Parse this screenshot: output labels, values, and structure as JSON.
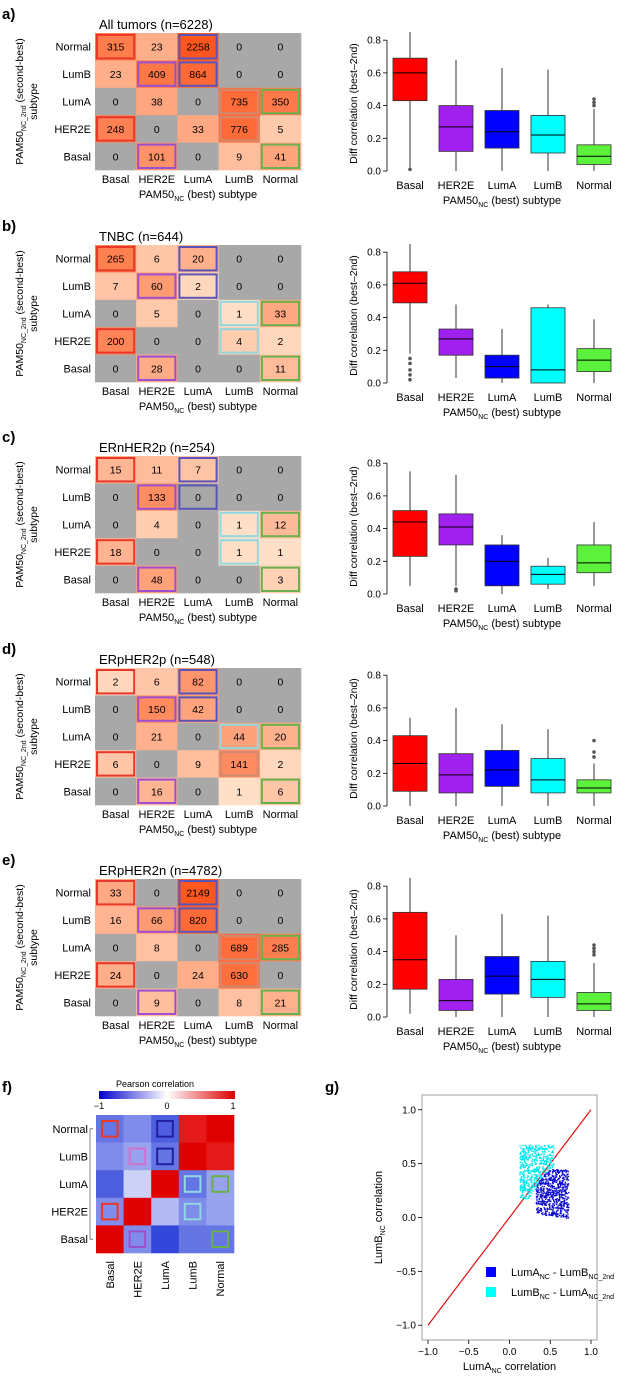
{
  "common": {
    "row_labels": [
      "Normal",
      "LumB",
      "LumA",
      "HER2E",
      "Basal"
    ],
    "col_labels": [
      "Basal",
      "HER2E",
      "LumA",
      "LumB",
      "Normal"
    ],
    "ylabel_main": "PAM50",
    "ylabel_sub": "NC_2nd",
    "ylabel_tail": " (second-best)",
    "ylabel_line2": "subtype",
    "xlabel_main": "PAM50",
    "xlabel_sub": "NC",
    "xlabel_tail": " (best) subtype",
    "box_ylabel": "Diff correlation (best–2nd)",
    "colors": {
      "Basal": "#ff0000",
      "HER2E": "#a020f0",
      "LumA": "#0000ff",
      "LumB": "#00ffff",
      "Normal": "#5cf23c"
    }
  },
  "panels": [
    {
      "letter": "a)",
      "title": "All tumors (n=6228)",
      "matrix": [
        [
          315,
          23,
          2258,
          0,
          0
        ],
        [
          23,
          409,
          864,
          0,
          0
        ],
        [
          0,
          38,
          0,
          735,
          350
        ],
        [
          248,
          0,
          33,
          776,
          5
        ],
        [
          0,
          101,
          0,
          9,
          41
        ]
      ],
      "boxes": [
        [
          0.43,
          0.6,
          0.69,
          0.85,
          0.01
        ],
        [
          0.12,
          0.27,
          0.4,
          0.68,
          0.0
        ],
        [
          0.14,
          0.24,
          0.37,
          0.63,
          0.0
        ],
        [
          0.11,
          0.22,
          0.34,
          0.62,
          0.0
        ],
        [
          0.04,
          0.09,
          0.16,
          0.38,
          0.0
        ]
      ],
      "outliers": [
        [
          0.01
        ],
        [],
        [],
        [],
        [
          0.4,
          0.42,
          0.44
        ]
      ]
    },
    {
      "letter": "b)",
      "title": "TNBC (n=644)",
      "matrix": [
        [
          265,
          6,
          20,
          0,
          0
        ],
        [
          7,
          60,
          2,
          0,
          0
        ],
        [
          0,
          5,
          0,
          1,
          33
        ],
        [
          200,
          0,
          0,
          4,
          2
        ],
        [
          0,
          28,
          0,
          0,
          11
        ]
      ],
      "boxes": [
        [
          0.49,
          0.61,
          0.68,
          0.85,
          0.18
        ],
        [
          0.17,
          0.27,
          0.33,
          0.48,
          0.03
        ],
        [
          0.03,
          0.1,
          0.17,
          0.33,
          0.0
        ],
        [
          0.0,
          0.08,
          0.46,
          0.48,
          0.0
        ],
        [
          0.07,
          0.14,
          0.21,
          0.39,
          0.0
        ]
      ],
      "outliers": [
        [
          0.02,
          0.05,
          0.08,
          0.12,
          0.15
        ],
        [],
        [],
        [],
        []
      ]
    },
    {
      "letter": "c)",
      "title": "ERnHER2p (n=254)",
      "matrix": [
        [
          15,
          11,
          7,
          0,
          0
        ],
        [
          0,
          133,
          0,
          0,
          0
        ],
        [
          0,
          4,
          0,
          1,
          12
        ],
        [
          18,
          0,
          0,
          1,
          1
        ],
        [
          0,
          48,
          0,
          0,
          3
        ]
      ],
      "boxes": [
        [
          0.23,
          0.44,
          0.51,
          0.75,
          0.05
        ],
        [
          0.3,
          0.41,
          0.49,
          0.73,
          0.05
        ],
        [
          0.05,
          0.2,
          0.3,
          0.36,
          0.0
        ],
        [
          0.06,
          0.12,
          0.17,
          0.22,
          0.03
        ],
        [
          0.13,
          0.19,
          0.3,
          0.44,
          0.05
        ]
      ],
      "outliers": [
        [],
        [
          0.02,
          0.03
        ],
        [],
        [],
        []
      ]
    },
    {
      "letter": "d)",
      "title": "ERpHER2p (n=548)",
      "matrix": [
        [
          2,
          6,
          82,
          0,
          0
        ],
        [
          0,
          150,
          42,
          0,
          0
        ],
        [
          0,
          21,
          0,
          44,
          20
        ],
        [
          6,
          0,
          9,
          141,
          2
        ],
        [
          0,
          16,
          0,
          1,
          6
        ]
      ],
      "boxes": [
        [
          0.09,
          0.26,
          0.43,
          0.54,
          0.0
        ],
        [
          0.08,
          0.19,
          0.32,
          0.6,
          0.0
        ],
        [
          0.12,
          0.22,
          0.34,
          0.5,
          0.0
        ],
        [
          0.08,
          0.16,
          0.29,
          0.47,
          0.0
        ],
        [
          0.08,
          0.11,
          0.16,
          0.26,
          0.0
        ]
      ],
      "outliers": [
        [],
        [],
        [],
        [],
        [
          0.3,
          0.33,
          0.4
        ]
      ]
    },
    {
      "letter": "e)",
      "title": "ERpHER2n (n=4782)",
      "matrix": [
        [
          33,
          0,
          2149,
          0,
          0
        ],
        [
          16,
          66,
          820,
          0,
          0
        ],
        [
          0,
          8,
          0,
          689,
          285
        ],
        [
          24,
          0,
          24,
          630,
          0
        ],
        [
          0,
          9,
          0,
          8,
          21
        ]
      ],
      "boxes": [
        [
          0.17,
          0.35,
          0.64,
          0.85,
          0.02
        ],
        [
          0.04,
          0.1,
          0.23,
          0.5,
          0.0
        ],
        [
          0.14,
          0.25,
          0.37,
          0.63,
          0.0
        ],
        [
          0.12,
          0.23,
          0.34,
          0.62,
          0.0
        ],
        [
          0.04,
          0.08,
          0.15,
          0.33,
          0.0
        ]
      ],
      "outliers": [
        [],
        [],
        [],
        [],
        [
          0.38,
          0.4,
          0.42,
          0.44
        ]
      ]
    }
  ],
  "panel_f": {
    "letter": "f)",
    "title": "Pearson correlation",
    "scale_labels": [
      "−1",
      "0",
      "1"
    ],
    "matrix": [
      [
        -0.6,
        -0.5,
        -0.7,
        0.9,
        1.0
      ],
      [
        -0.5,
        -0.4,
        -0.6,
        1.0,
        0.9
      ],
      [
        -0.7,
        -0.2,
        1.0,
        -0.6,
        -0.4
      ],
      [
        -0.5,
        1.0,
        -0.3,
        -0.5,
        -0.4
      ],
      [
        1.0,
        -0.5,
        -0.8,
        -0.6,
        -0.6
      ]
    ]
  },
  "panel_g": {
    "letter": "g)",
    "ylabel_main": "LumB",
    "ylabel_sub": "NC",
    "ylabel_tail": " correlation",
    "xlabel_main": "LumA",
    "xlabel_sub": "NC",
    "xlabel_tail": " correlation",
    "ticks": [
      -1.0,
      -0.5,
      0.0,
      0.5,
      1.0
    ],
    "tick_labels": [
      "−1.0",
      "−0.5",
      "0.0",
      "0.5",
      "1.0"
    ],
    "legend": [
      {
        "a": "LumA",
        "a_sub": "NC",
        "b": " - LumB",
        "b_sub": "NC_2nd",
        "color": "#0000ff"
      },
      {
        "a": "LumB",
        "a_sub": "NC",
        "b": " - LumA",
        "b_sub": "NC_2nd",
        "color": "#00ffff"
      }
    ]
  }
}
